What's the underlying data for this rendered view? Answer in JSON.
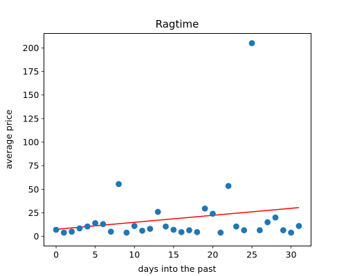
{
  "chart_data": {
    "type": "scatter",
    "title": "Ragtime",
    "xlabel": "days into the past",
    "ylabel": "average price",
    "xlim": [
      -1.55,
      32.55
    ],
    "ylim": [
      -10.2,
      215.3
    ],
    "xticks": [
      0,
      5,
      10,
      15,
      20,
      25,
      30
    ],
    "yticks": [
      0,
      25,
      50,
      75,
      100,
      125,
      150,
      175,
      200
    ],
    "grid": false,
    "point_color": "#1f77b4",
    "points": {
      "x": [
        0,
        1,
        2,
        3,
        4,
        5,
        6,
        7,
        8,
        9,
        10,
        11,
        12,
        13,
        14,
        15,
        16,
        17,
        18,
        19,
        20,
        21,
        22,
        23,
        24,
        25,
        26,
        27,
        28,
        29,
        30,
        31
      ],
      "y": [
        7,
        4,
        5,
        8.5,
        10.5,
        14,
        13,
        5,
        55.5,
        4,
        11,
        6,
        8,
        26,
        10.5,
        7,
        4.5,
        6.5,
        4.5,
        29.5,
        24,
        4,
        53.5,
        10.5,
        6.5,
        205,
        6.5,
        15,
        20,
        6.5,
        4,
        11
      ]
    },
    "trendline": {
      "color": "#ff0000",
      "x": [
        0,
        31
      ],
      "y": [
        7.5,
        30.5
      ]
    }
  }
}
